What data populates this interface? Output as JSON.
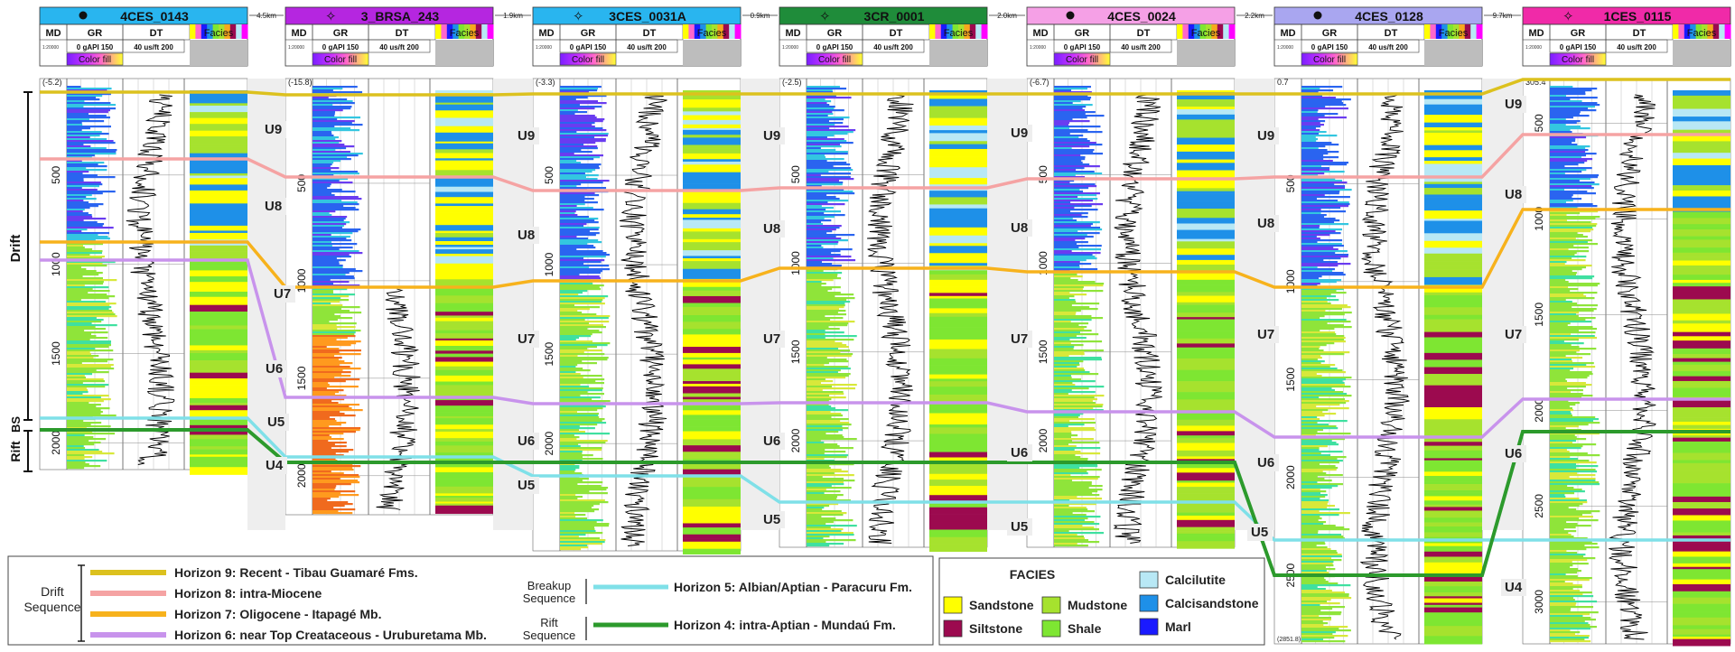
{
  "chart_data": {
    "type": "well-log-correlation",
    "wells": [
      {
        "name": "4CES_0143",
        "symbol": "dot",
        "color": "#29b5ef",
        "scale": "1:20000",
        "top_value": "(-5.2)",
        "depth_ticks": [
          500,
          1000,
          1500,
          2000
        ],
        "tracks": {
          "md": "MD",
          "gr": "GR",
          "gr_range": "0 gAPI 150",
          "dt": "DT",
          "dt_range": "40 us/ft 200",
          "facies": "Facies",
          "fill": "Color fill"
        },
        "depth_min": -5,
        "depth_max": 2150
      },
      {
        "name": "3_BRSA_243",
        "symbol": "gas",
        "color": "#b526e0",
        "scale": "1:20000",
        "top_value": "(-15.8)",
        "depth_ticks": [
          500,
          1000,
          1500,
          2000
        ],
        "tracks": {
          "md": "MD",
          "gr": "GR",
          "gr_range": "0 gAPI 150",
          "dt": "DT",
          "dt_range": "40 us/ft 200",
          "facies": "Facies",
          "fill": "Color fill"
        },
        "depth_min": -15,
        "depth_max": 2200
      },
      {
        "name": "3CES_0031A",
        "symbol": "gas",
        "color": "#29b5ef",
        "scale": "1:20000",
        "top_value": "(-3.3)",
        "depth_ticks": [
          500,
          1000,
          1500,
          2000
        ],
        "tracks": {
          "md": "MD",
          "gr": "GR",
          "gr_range": "0 gAPI 150",
          "dt": "DT",
          "dt_range": "40 us/ft 200",
          "facies": "Facies",
          "fill": "Color fill"
        },
        "depth_min": -3,
        "depth_max": 2600
      },
      {
        "name": "3CR_0001",
        "symbol": "gas",
        "color": "#1f8c3a",
        "scale": "1:20000",
        "top_value": "(-2.5)",
        "depth_ticks": [
          500,
          1000,
          1500,
          2000
        ],
        "tracks": {
          "md": "MD",
          "gr": "GR",
          "gr_range": "0 gAPI 150",
          "dt": "DT",
          "dt_range": "40 us/ft 200",
          "facies": "Facies",
          "fill": "Color fill"
        },
        "depth_min": -2,
        "depth_max": 2600
      },
      {
        "name": "4CES_0024",
        "symbol": "dot",
        "color": "#f5a0e6",
        "scale": "1:20000",
        "top_value": "(-6.7)",
        "depth_ticks": [
          500,
          1000,
          1500,
          2000
        ],
        "tracks": {
          "md": "MD",
          "gr": "GR",
          "gr_range": "0 gAPI 150",
          "dt": "DT",
          "dt_range": "40 us/ft 200",
          "facies": "Facies",
          "fill": "Color fill"
        },
        "depth_min": -6,
        "depth_max": 2600
      },
      {
        "name": "4CES_0128",
        "symbol": "dot",
        "color": "#a9a6f0",
        "scale": "1:20000",
        "top_value": "0.7",
        "depth_ticks": [
          500,
          1000,
          1500,
          2000,
          2500
        ],
        "tracks": {
          "md": "MD",
          "gr": "GR",
          "gr_range": "0 gAPI 150",
          "dt": "DT",
          "dt_range": "40 us/ft 200",
          "facies": "Facies",
          "fill": "Color fill"
        },
        "depth_min": 0,
        "depth_max": 2850,
        "bottom_value": "(2851.8)"
      },
      {
        "name": "1CES_0115",
        "symbol": "gas",
        "color": "#f02aa8",
        "scale": "1:20000",
        "top_value": "305.4",
        "depth_ticks": [
          500,
          1000,
          1500,
          2000,
          2500,
          3000
        ],
        "tracks": {
          "md": "MD",
          "gr": "GR",
          "gr_range": "0 gAPI 150",
          "dt": "DT",
          "dt_range": "40 us/ft 200",
          "facies": "Facies",
          "fill": "Color fill"
        },
        "depth_min": 305,
        "depth_max": 3220
      }
    ],
    "distances": [
      "4.5km",
      "1.9km",
      "0.9km",
      "2.0km",
      "2.2km",
      "9.7km"
    ],
    "sequences": [
      {
        "label": "Drift"
      },
      {
        "label": "BS"
      },
      {
        "label": "Rift"
      }
    ],
    "units": [
      "U9",
      "U8",
      "U7",
      "U6",
      "U5",
      "U4"
    ],
    "horizons": [
      {
        "id": "H9",
        "color": "#dcc11e",
        "label": "Horizon 9: Recent - Tibau Guamaré Fms.",
        "group": "drift"
      },
      {
        "id": "H8",
        "color": "#f5a3a3",
        "label": "Horizon 8: intra-Miocene",
        "group": "drift"
      },
      {
        "id": "H7",
        "color": "#f7b21c",
        "label": "Horizon 7: Oligocene - Itapagé Mb.",
        "group": "drift"
      },
      {
        "id": "H6",
        "color": "#c893ec",
        "label": "Horizon 6: near Top Creataceous - Uruburetama Mb.",
        "group": "drift"
      },
      {
        "id": "H5",
        "color": "#7fe0e8",
        "label": "Horizon 5: Albian/Aptian - Paracuru Fm.",
        "group": "breakup"
      },
      {
        "id": "H4",
        "color": "#2c9a2c",
        "label": "Horizon 4: intra-Aptian - Mundaú Fm.",
        "group": "rift"
      }
    ],
    "legend_groups": {
      "drift": "Drift Sequence",
      "breakup": "Breakup Sequence",
      "rift": "Rift Sequence"
    },
    "facies": {
      "title": "FACIES",
      "items": [
        {
          "name": "Sandstone",
          "color": "#ffff00"
        },
        {
          "name": "Mudstone",
          "color": "#a6e22e"
        },
        {
          "name": "Siltstone",
          "color": "#9c0a4f"
        },
        {
          "name": "Shale",
          "color": "#7ee632"
        },
        {
          "name": "Calcilutite",
          "color": "#b8e8f5"
        },
        {
          "name": "Calcisandstone",
          "color": "#1e90e8"
        },
        {
          "name": "Marl",
          "color": "#1a1aff"
        }
      ]
    }
  }
}
